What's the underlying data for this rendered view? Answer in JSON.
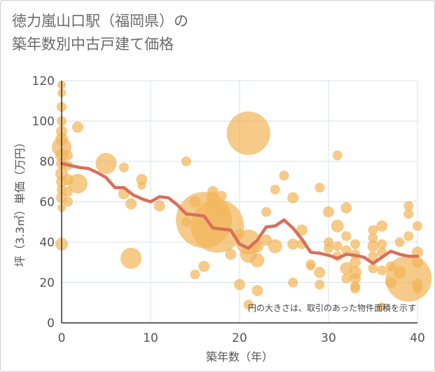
{
  "title_line1": "徳力嵐山口駅（福岡県）の",
  "title_line2": "築年数別中古戸建て価格",
  "colors": {
    "bubble": "#f2b65a",
    "line": "#d8705a",
    "grid": "#d8e0e8",
    "axis": "#333333"
  },
  "chart_data": {
    "type": "scatter",
    "title": "徳力嵐山口駅（福岡県）の 築年数別中古戸建て価格",
    "xlabel": "築年数（年）",
    "ylabel": "坪（3.3㎡）単価（万円）",
    "xlim": [
      0,
      40
    ],
    "ylim": [
      0,
      120
    ],
    "xticks": [
      0,
      10,
      20,
      30,
      40
    ],
    "yticks": [
      0,
      20,
      40,
      60,
      80,
      100,
      120
    ],
    "grid": true,
    "note": "円の大きさは、取引のあった物件面積を示す",
    "bubbles": [
      {
        "x": 0,
        "y": 118,
        "s": 6
      },
      {
        "x": 0,
        "y": 114,
        "s": 6
      },
      {
        "x": 0,
        "y": 107,
        "s": 7
      },
      {
        "x": 0,
        "y": 100,
        "s": 7
      },
      {
        "x": 0,
        "y": 95,
        "s": 8
      },
      {
        "x": 0,
        "y": 91,
        "s": 9
      },
      {
        "x": 0,
        "y": 87,
        "s": 14
      },
      {
        "x": 0,
        "y": 83,
        "s": 9
      },
      {
        "x": 0,
        "y": 79,
        "s": 8
      },
      {
        "x": 0,
        "y": 74,
        "s": 9
      },
      {
        "x": 0,
        "y": 70,
        "s": 8
      },
      {
        "x": 0,
        "y": 66,
        "s": 7
      },
      {
        "x": 0,
        "y": 62,
        "s": 8
      },
      {
        "x": 0,
        "y": 57,
        "s": 6
      },
      {
        "x": 0,
        "y": 39,
        "s": 9
      },
      {
        "x": 0.7,
        "y": 83,
        "s": 7
      },
      {
        "x": 0.7,
        "y": 78,
        "s": 7
      },
      {
        "x": 0.7,
        "y": 71,
        "s": 8
      },
      {
        "x": 0.7,
        "y": 65,
        "s": 7
      },
      {
        "x": 0.7,
        "y": 60,
        "s": 7
      },
      {
        "x": 1.8,
        "y": 69,
        "s": 14
      },
      {
        "x": 1.8,
        "y": 97,
        "s": 8
      },
      {
        "x": 5,
        "y": 79,
        "s": 15
      },
      {
        "x": 7,
        "y": 77,
        "s": 7
      },
      {
        "x": 7,
        "y": 64,
        "s": 8
      },
      {
        "x": 7.8,
        "y": 59,
        "s": 8
      },
      {
        "x": 7.8,
        "y": 32,
        "s": 15
      },
      {
        "x": 9,
        "y": 71,
        "s": 8
      },
      {
        "x": 9,
        "y": 68,
        "s": 6
      },
      {
        "x": 11,
        "y": 58,
        "s": 8
      },
      {
        "x": 14,
        "y": 80,
        "s": 7
      },
      {
        "x": 14,
        "y": 50,
        "s": 7
      },
      {
        "x": 15,
        "y": 60,
        "s": 8
      },
      {
        "x": 15,
        "y": 24,
        "s": 7
      },
      {
        "x": 16,
        "y": 51,
        "s": 40
      },
      {
        "x": 16,
        "y": 28,
        "s": 8
      },
      {
        "x": 17,
        "y": 65,
        "s": 8
      },
      {
        "x": 17,
        "y": 62,
        "s": 9
      },
      {
        "x": 17,
        "y": 59,
        "s": 8
      },
      {
        "x": 17.5,
        "y": 48,
        "s": 38
      },
      {
        "x": 18,
        "y": 55,
        "s": 8
      },
      {
        "x": 18,
        "y": 63,
        "s": 7
      },
      {
        "x": 19,
        "y": 34,
        "s": 8
      },
      {
        "x": 20,
        "y": 19,
        "s": 8
      },
      {
        "x": 20,
        "y": 44,
        "s": 7
      },
      {
        "x": 21,
        "y": 94,
        "s": 31
      },
      {
        "x": 21,
        "y": 40,
        "s": 18
      },
      {
        "x": 21,
        "y": 34,
        "s": 12
      },
      {
        "x": 21,
        "y": 9,
        "s": 7
      },
      {
        "x": 22,
        "y": 38,
        "s": 9
      },
      {
        "x": 22,
        "y": 31,
        "s": 10
      },
      {
        "x": 22,
        "y": 16,
        "s": 8
      },
      {
        "x": 23,
        "y": 55,
        "s": 7
      },
      {
        "x": 23,
        "y": 41,
        "s": 8
      },
      {
        "x": 24,
        "y": 66,
        "s": 7
      },
      {
        "x": 24,
        "y": 38,
        "s": 10
      },
      {
        "x": 25,
        "y": 73,
        "s": 7
      },
      {
        "x": 26,
        "y": 62,
        "s": 8
      },
      {
        "x": 26,
        "y": 39,
        "s": 8
      },
      {
        "x": 26,
        "y": 20,
        "s": 7
      },
      {
        "x": 27,
        "y": 46,
        "s": 8
      },
      {
        "x": 27,
        "y": 39,
        "s": 7
      },
      {
        "x": 28,
        "y": 29,
        "s": 7
      },
      {
        "x": 28,
        "y": 28,
        "s": 6
      },
      {
        "x": 29,
        "y": 67,
        "s": 7
      },
      {
        "x": 29,
        "y": 25,
        "s": 8
      },
      {
        "x": 29,
        "y": 19,
        "s": 7
      },
      {
        "x": 30,
        "y": 55,
        "s": 8
      },
      {
        "x": 30,
        "y": 40,
        "s": 7
      },
      {
        "x": 30,
        "y": 37,
        "s": 7
      },
      {
        "x": 31,
        "y": 83,
        "s": 7
      },
      {
        "x": 31,
        "y": 48,
        "s": 9
      },
      {
        "x": 31,
        "y": 38,
        "s": 7
      },
      {
        "x": 31,
        "y": 33,
        "s": 7
      },
      {
        "x": 32,
        "y": 57,
        "s": 8
      },
      {
        "x": 32,
        "y": 43,
        "s": 7
      },
      {
        "x": 32,
        "y": 36,
        "s": 7
      },
      {
        "x": 32,
        "y": 27,
        "s": 9
      },
      {
        "x": 32,
        "y": 22,
        "s": 7
      },
      {
        "x": 33,
        "y": 39,
        "s": 7
      },
      {
        "x": 33,
        "y": 34,
        "s": 7
      },
      {
        "x": 33,
        "y": 30,
        "s": 8
      },
      {
        "x": 33,
        "y": 25,
        "s": 9
      },
      {
        "x": 33,
        "y": 22,
        "s": 8
      },
      {
        "x": 33,
        "y": 18,
        "s": 7
      },
      {
        "x": 33,
        "y": 17,
        "s": 7
      },
      {
        "x": 35,
        "y": 46,
        "s": 7
      },
      {
        "x": 35,
        "y": 42,
        "s": 7
      },
      {
        "x": 35,
        "y": 38,
        "s": 8
      },
      {
        "x": 35,
        "y": 33,
        "s": 7
      },
      {
        "x": 35,
        "y": 27,
        "s": 7
      },
      {
        "x": 36,
        "y": 48,
        "s": 8
      },
      {
        "x": 36,
        "y": 39,
        "s": 7
      },
      {
        "x": 36,
        "y": 35,
        "s": 7
      },
      {
        "x": 36,
        "y": 26,
        "s": 7
      },
      {
        "x": 36,
        "y": 8,
        "s": 6
      },
      {
        "x": 37,
        "y": 28,
        "s": 7
      },
      {
        "x": 37,
        "y": 20,
        "s": 8
      },
      {
        "x": 38,
        "y": 40,
        "s": 7
      },
      {
        "x": 38,
        "y": 25,
        "s": 9
      },
      {
        "x": 39,
        "y": 58,
        "s": 7
      },
      {
        "x": 39,
        "y": 54,
        "s": 7
      },
      {
        "x": 39,
        "y": 43,
        "s": 7
      },
      {
        "x": 39,
        "y": 22,
        "s": 33
      },
      {
        "x": 40,
        "y": 48,
        "s": 7
      },
      {
        "x": 40,
        "y": 35,
        "s": 8
      },
      {
        "x": 40,
        "y": 30,
        "s": 8
      },
      {
        "x": 40,
        "y": 19,
        "s": 8
      },
      {
        "x": 40,
        "y": 17,
        "s": 7
      }
    ],
    "series": [
      {
        "type": "line",
        "x": [
          0,
          1,
          2,
          3,
          4,
          5,
          6,
          7,
          8,
          9,
          10,
          11,
          12,
          13,
          14,
          15,
          16,
          17,
          18,
          19,
          20,
          21,
          22,
          23,
          24,
          25,
          26,
          27,
          28,
          29,
          30,
          31,
          32,
          33,
          34,
          35,
          36,
          37,
          38,
          39,
          40
        ],
        "y": [
          79,
          78,
          77,
          76.5,
          74.5,
          72,
          67,
          67,
          63.5,
          61.5,
          60,
          62.5,
          62,
          58.5,
          54,
          53.5,
          53,
          47,
          46.5,
          46,
          39,
          37,
          41,
          47.5,
          48,
          51,
          47,
          41.5,
          35,
          34.5,
          33.5,
          32,
          34,
          33.5,
          32.5,
          29.5,
          32.5,
          35.5,
          34,
          33,
          33
        ]
      }
    ]
  }
}
